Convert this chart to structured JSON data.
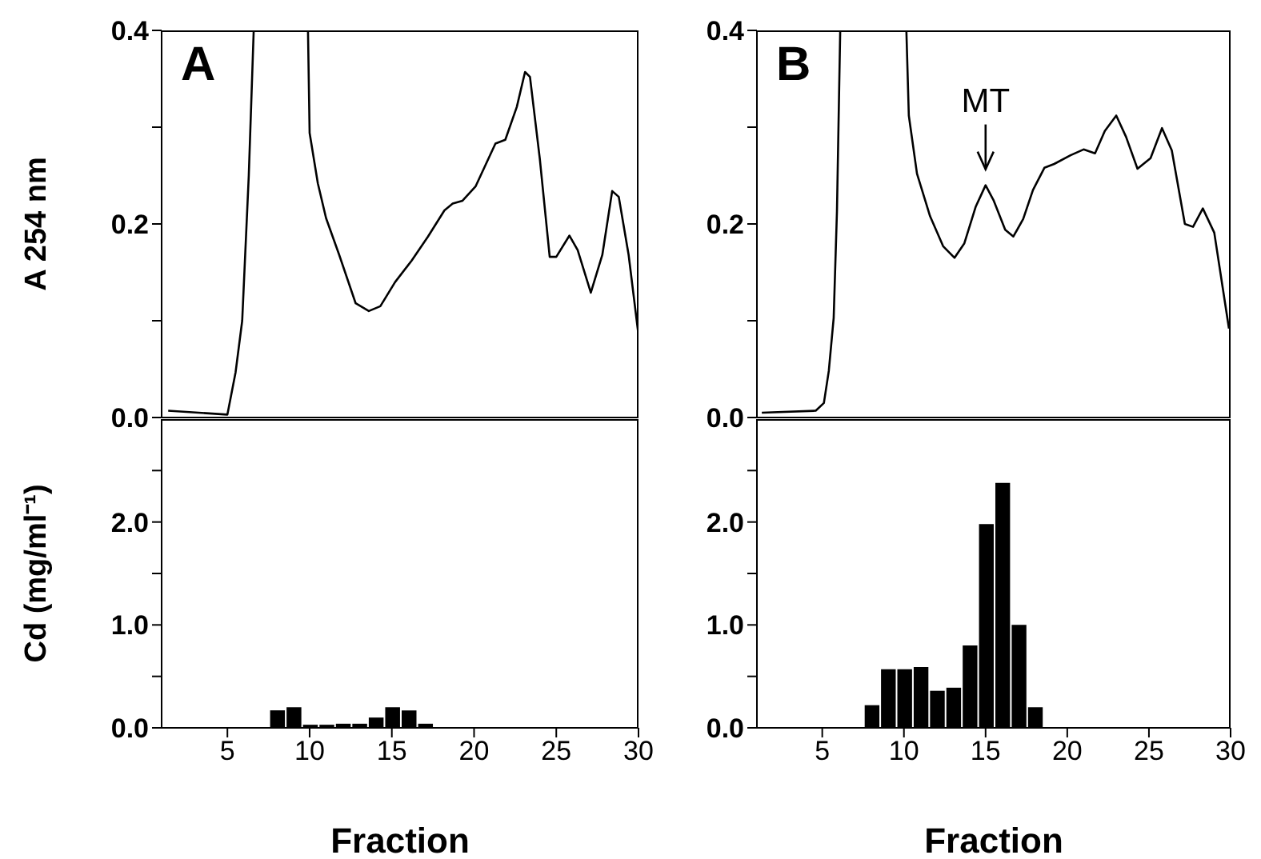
{
  "chart_data": [
    {
      "type": "line",
      "ylabel": "A 254 nm",
      "annotations": [
        "A"
      ],
      "xlim": [
        1,
        30
      ],
      "xticks": [
        5,
        10,
        15,
        20,
        25,
        30
      ],
      "ylim": [
        0,
        0.4
      ],
      "yticks": [
        {
          "value": 0,
          "label": "0.0"
        },
        {
          "value": 0.1,
          "label": null
        },
        {
          "value": 0.2,
          "label": "0.2"
        },
        {
          "value": 0.3,
          "label": null
        },
        {
          "value": 0.4,
          "label": "0.4"
        }
      ],
      "tick_labels": "y",
      "grid": false,
      "legend": false,
      "series": [
        {
          "color": "#000000",
          "x": [
            1.4,
            5,
            5.5,
            5.9,
            6.3,
            6.6,
            8,
            9.9,
            10,
            10.5,
            11,
            11.8,
            12.8,
            13.6,
            14.3,
            15.2,
            16.2,
            17.2,
            18.2,
            18.7,
            19.3,
            20.1,
            21.3,
            21.9,
            22.6,
            23.1,
            23.4,
            24,
            24.6,
            25,
            25.8,
            26.3,
            27.1,
            27.8,
            28.4,
            28.8,
            29.4,
            30
          ],
          "values": [
            0.007,
            0.003,
            0.047,
            0.1,
            0.25,
            0.4,
            null,
            0.4,
            0.294,
            0.242,
            0.206,
            0.168,
            0.118,
            0.11,
            0.115,
            0.14,
            0.162,
            0.187,
            0.214,
            0.221,
            0.224,
            0.239,
            0.283,
            0.287,
            0.321,
            0.357,
            0.352,
            0.267,
            0.166,
            0.166,
            0.188,
            0.173,
            0.129,
            0.168,
            0.234,
            0.228,
            0.168,
            0.085
          ]
        }
      ]
    },
    {
      "type": "line",
      "annotations": [
        "B",
        {
          "text": "MT",
          "x": 15,
          "y": 0.24
        }
      ],
      "xlim": [
        1,
        30
      ],
      "xticks": [
        5,
        10,
        15,
        20,
        25,
        30
      ],
      "ylim": [
        0,
        0.4
      ],
      "yticks": [
        {
          "value": 0,
          "label": "0.0"
        },
        {
          "value": 0.1,
          "label": null
        },
        {
          "value": 0.2,
          "label": "0.2"
        },
        {
          "value": 0.3,
          "label": null
        },
        {
          "value": 0.4,
          "label": "0.4"
        }
      ],
      "tick_labels": "y",
      "grid": false,
      "legend": false,
      "series": [
        {
          "color": "#000000",
          "x": [
            1.3,
            4.6,
            5.1,
            5.4,
            5.7,
            5.9,
            6.1,
            8,
            10.15,
            10.3,
            10.8,
            11.6,
            12.4,
            13.1,
            13.7,
            14.4,
            15,
            15.5,
            16.2,
            16.7,
            17.3,
            17.9,
            18.6,
            19.2,
            20.2,
            21,
            21.7,
            22.3,
            23,
            23.6,
            24.3,
            25.1,
            25.8,
            26.4,
            27.2,
            27.7,
            28.3,
            29,
            29.5,
            29.9
          ],
          "values": [
            0.005,
            0.007,
            0.015,
            0.048,
            0.103,
            0.213,
            0.4,
            null,
            0.4,
            0.312,
            0.252,
            0.208,
            0.177,
            0.165,
            0.18,
            0.218,
            0.24,
            0.224,
            0.194,
            0.187,
            0.205,
            0.235,
            0.258,
            0.262,
            0.271,
            0.277,
            0.273,
            0.296,
            0.312,
            0.29,
            0.257,
            0.268,
            0.299,
            0.276,
            0.2,
            0.197,
            0.216,
            0.191,
            0.136,
            0.092
          ]
        }
      ]
    },
    {
      "type": "bar",
      "xlabel": "Fraction",
      "ylabel": "Cd (mg/ml⁻¹)",
      "xlim": [
        1,
        30
      ],
      "xticks": [
        5,
        10,
        15,
        20,
        25,
        30
      ],
      "ylim": [
        0,
        3
      ],
      "yticks": [
        {
          "value": 0,
          "label": "0.0"
        },
        {
          "value": 0.5,
          "label": null
        },
        {
          "value": 1,
          "label": "1.0"
        },
        {
          "value": 1.5,
          "label": null
        },
        {
          "value": 2,
          "label": "2.0"
        },
        {
          "value": 2.5,
          "label": null
        }
      ],
      "grid": false,
      "legend": false,
      "x": [
        8,
        9,
        10,
        11,
        12,
        13,
        14,
        15,
        16,
        17
      ],
      "values": [
        0.17,
        0.2,
        0.03,
        0.03,
        0.04,
        0.04,
        0.1,
        0.2,
        0.17,
        0.04
      ],
      "color": "#000000"
    },
    {
      "type": "bar",
      "xlabel": "Fraction",
      "xlim": [
        1,
        30
      ],
      "xticks": [
        5,
        10,
        15,
        20,
        25,
        30
      ],
      "ylim": [
        0,
        3
      ],
      "yticks": [
        {
          "value": 0,
          "label": "0.0"
        },
        {
          "value": 0.5,
          "label": null
        },
        {
          "value": 1,
          "label": "1.0"
        },
        {
          "value": 1.5,
          "label": null
        },
        {
          "value": 2,
          "label": "2.0"
        },
        {
          "value": 2.5,
          "label": null
        }
      ],
      "grid": false,
      "legend": false,
      "x": [
        8,
        9,
        10,
        11,
        12,
        13,
        14,
        15,
        16,
        17,
        18
      ],
      "values": [
        0.22,
        0.57,
        0.57,
        0.59,
        0.36,
        0.39,
        0.8,
        1.98,
        2.38,
        1.0,
        0.2
      ],
      "color": "#000000"
    }
  ]
}
